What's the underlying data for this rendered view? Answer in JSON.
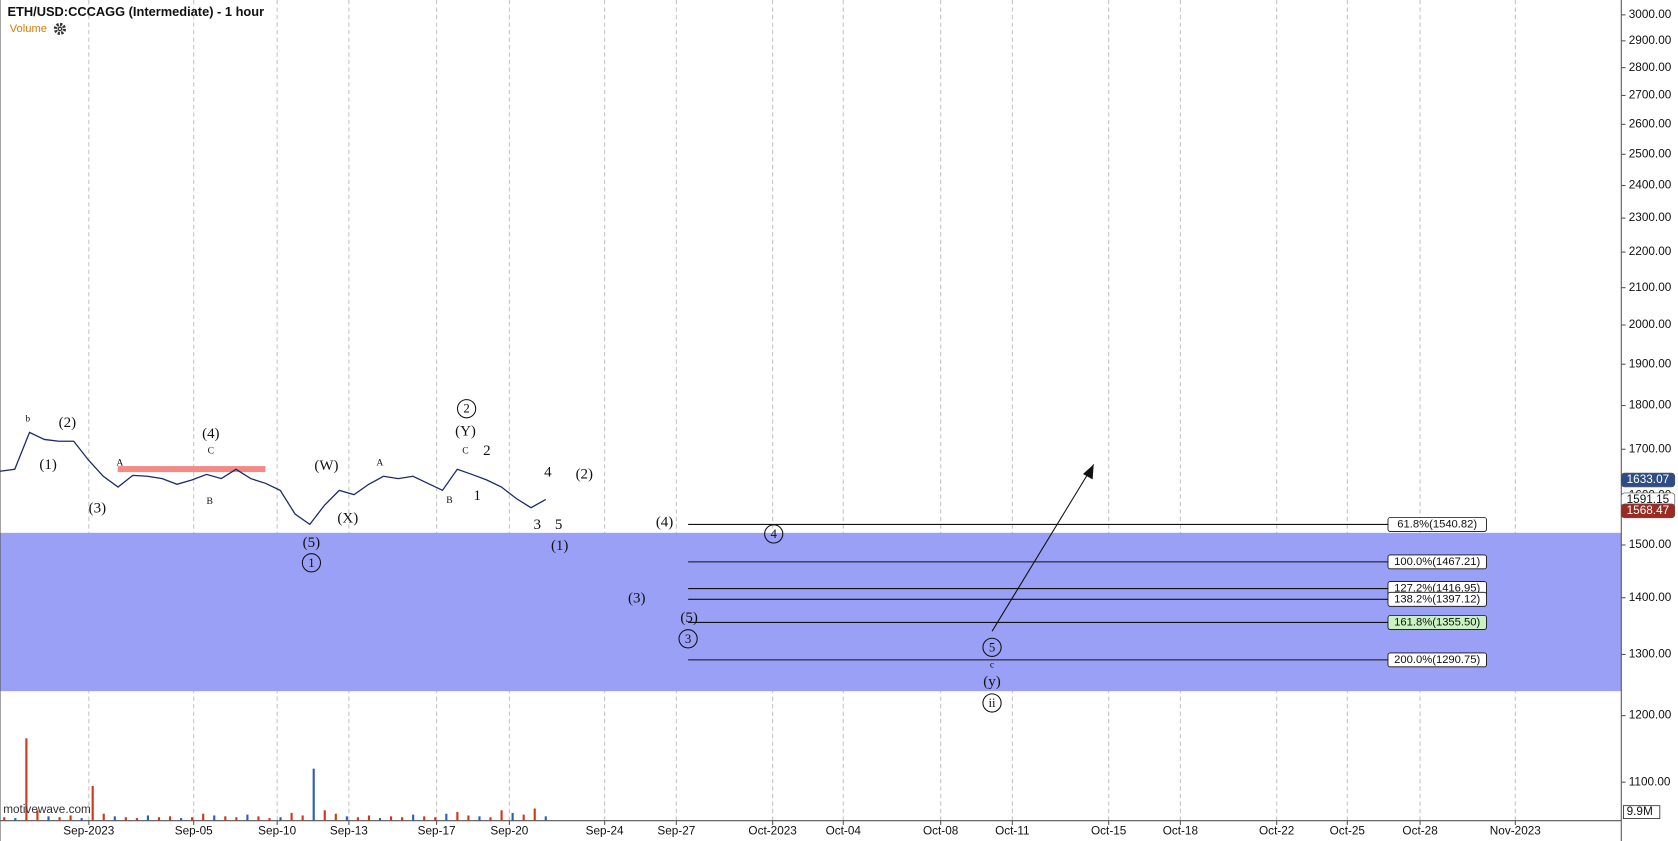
{
  "chart_data": {
    "type": "line",
    "title": "ETH/USD:CCCAGG (Intermediate) - 1 hour",
    "volume_label": "Volume",
    "watermark": "motivewave.com",
    "log_scale": true,
    "grid": "x",
    "ylim": [
      1046,
      3059
    ],
    "yticks": [
      {
        "value": 1100,
        "label": "1100.00"
      },
      {
        "value": 1200,
        "label": "1200.00"
      },
      {
        "value": 1300,
        "label": "1300.00"
      },
      {
        "value": 1400,
        "label": "1400.00"
      },
      {
        "value": 1500,
        "label": "1500.00"
      },
      {
        "value": 1600,
        "label": "1600.00"
      },
      {
        "value": 1700,
        "label": "1700.00"
      },
      {
        "value": 1800,
        "label": "1800.00"
      },
      {
        "value": 1900,
        "label": "1900.00"
      },
      {
        "value": 2000,
        "label": "2000.00"
      },
      {
        "value": 2100,
        "label": "2100.00"
      },
      {
        "value": 2200,
        "label": "2200.00"
      },
      {
        "value": 2300,
        "label": "2300.00"
      },
      {
        "value": 2400,
        "label": "2400.00"
      },
      {
        "value": 2500,
        "label": "2500.00"
      },
      {
        "value": 2600,
        "label": "2600.00"
      },
      {
        "value": 2700,
        "label": "2700.00"
      },
      {
        "value": 2800,
        "label": "2800.00"
      },
      {
        "value": 2900,
        "label": "2900.00"
      },
      {
        "value": 3000,
        "label": "3000.00"
      }
    ],
    "xticks": [
      "Sep-2023",
      "Sep-05",
      "Sep-10",
      "Sep-13",
      "Sep-17",
      "Sep-20",
      "Sep-24",
      "Sep-27",
      "Oct-2023",
      "Oct-04",
      "Oct-08",
      "Oct-11",
      "Oct-15",
      "Oct-18",
      "Oct-22",
      "Oct-25",
      "Oct-28",
      "Nov-2023"
    ],
    "series": [
      {
        "color": "#1b2a6b",
        "values": [
          1652,
          1656,
          1738,
          1722,
          1718,
          1718,
          1676,
          1641,
          1618,
          1643,
          1641,
          1636,
          1624,
          1633,
          1645,
          1636,
          1656,
          1636,
          1626,
          1611,
          1562,
          1541,
          1580,
          1611,
          1602,
          1624,
          1641,
          1636,
          1641,
          1626,
          1611,
          1656,
          1645,
          1633,
          1618,
          1594,
          1575,
          1592
        ]
      }
    ],
    "volume": {
      "color": "#cc3a1c",
      "ylim": [
        0,
        100
      ],
      "yticks": [
        {
          "value": 9.9,
          "label": "9.9M"
        }
      ],
      "values": [
        4,
        3,
        95,
        12,
        5,
        4,
        6,
        3,
        40,
        8,
        5,
        4,
        3,
        6,
        4,
        5,
        3,
        4,
        8,
        6,
        5,
        4,
        7,
        5,
        3,
        4,
        9,
        6,
        60,
        12,
        8,
        5,
        4,
        6,
        3,
        5,
        4,
        7,
        5,
        4,
        8,
        10,
        6,
        5,
        4,
        12,
        9,
        7,
        14,
        5
      ]
    },
    "price_markers": [
      {
        "value": 1633.07,
        "color": "#2e4c86",
        "text_color": "#ffffff"
      },
      {
        "value": 1591.15,
        "color": "#ffffff",
        "text_color": "#111111"
      },
      {
        "value": 1568.47,
        "color": "#9b2a22",
        "text_color": "#ffffff"
      }
    ],
    "fib_levels": [
      {
        "value": 1540.82,
        "label": "61.8%(1540.82)",
        "color": "#ffffff"
      },
      {
        "value": 1467.21,
        "label": "100.0%(1467.21)",
        "color": "#ffffff"
      },
      {
        "value": 1416.95,
        "label": "127.2%(1416.95)",
        "color": "#ffffff"
      },
      {
        "value": 1397.12,
        "label": "138.2%(1397.12)",
        "color": "#ffffff"
      },
      {
        "value": 1355.5,
        "label": "161.8%(1355.50)",
        "color": "#c9f2c0"
      },
      {
        "value": 1290.75,
        "label": "200.0%(1290.75)",
        "color": "#ffffff"
      }
    ],
    "zone": {
      "color": "#9aa0f6",
      "ylim": [
        1239,
        1524
      ]
    },
    "resistance": {
      "color": "#f28a86",
      "ylim": [
        1650,
        1663
      ]
    },
    "wave_labels": [
      {
        "text": "b",
        "circled": false
      },
      {
        "text": "(2)",
        "circled": false
      },
      {
        "text": "(1)",
        "circled": false
      },
      {
        "text": "(3)",
        "circled": false
      },
      {
        "text": "A",
        "circled": false
      },
      {
        "text": "(4)",
        "circled": false
      },
      {
        "text": "C",
        "circled": false
      },
      {
        "text": "B",
        "circled": false
      },
      {
        "text": "(W)",
        "circled": false
      },
      {
        "text": "A",
        "circled": false
      },
      {
        "text": "(X)",
        "circled": false
      },
      {
        "text": "(5)",
        "circled": false
      },
      {
        "text": "1",
        "circled": true
      },
      {
        "text": "2",
        "circled": true
      },
      {
        "text": "(Y)",
        "circled": false
      },
      {
        "text": "C",
        "circled": false
      },
      {
        "text": "2",
        "circled": false
      },
      {
        "text": "B",
        "circled": false
      },
      {
        "text": "1",
        "circled": false
      },
      {
        "text": "4",
        "circled": false
      },
      {
        "text": "(2)",
        "circled": false
      },
      {
        "text": "3",
        "circled": false
      },
      {
        "text": "5",
        "circled": false
      },
      {
        "text": "(1)",
        "circled": false
      },
      {
        "text": "(4)",
        "circled": false
      },
      {
        "text": "4",
        "circled": true
      },
      {
        "text": "(3)",
        "circled": false
      },
      {
        "text": "(5)",
        "circled": false
      },
      {
        "text": "3",
        "circled": true
      },
      {
        "text": "5",
        "circled": true
      },
      {
        "text": "c",
        "circled": false
      },
      {
        "text": "(y)",
        "circled": false
      },
      {
        "text": "ii",
        "circled": true
      }
    ]
  }
}
